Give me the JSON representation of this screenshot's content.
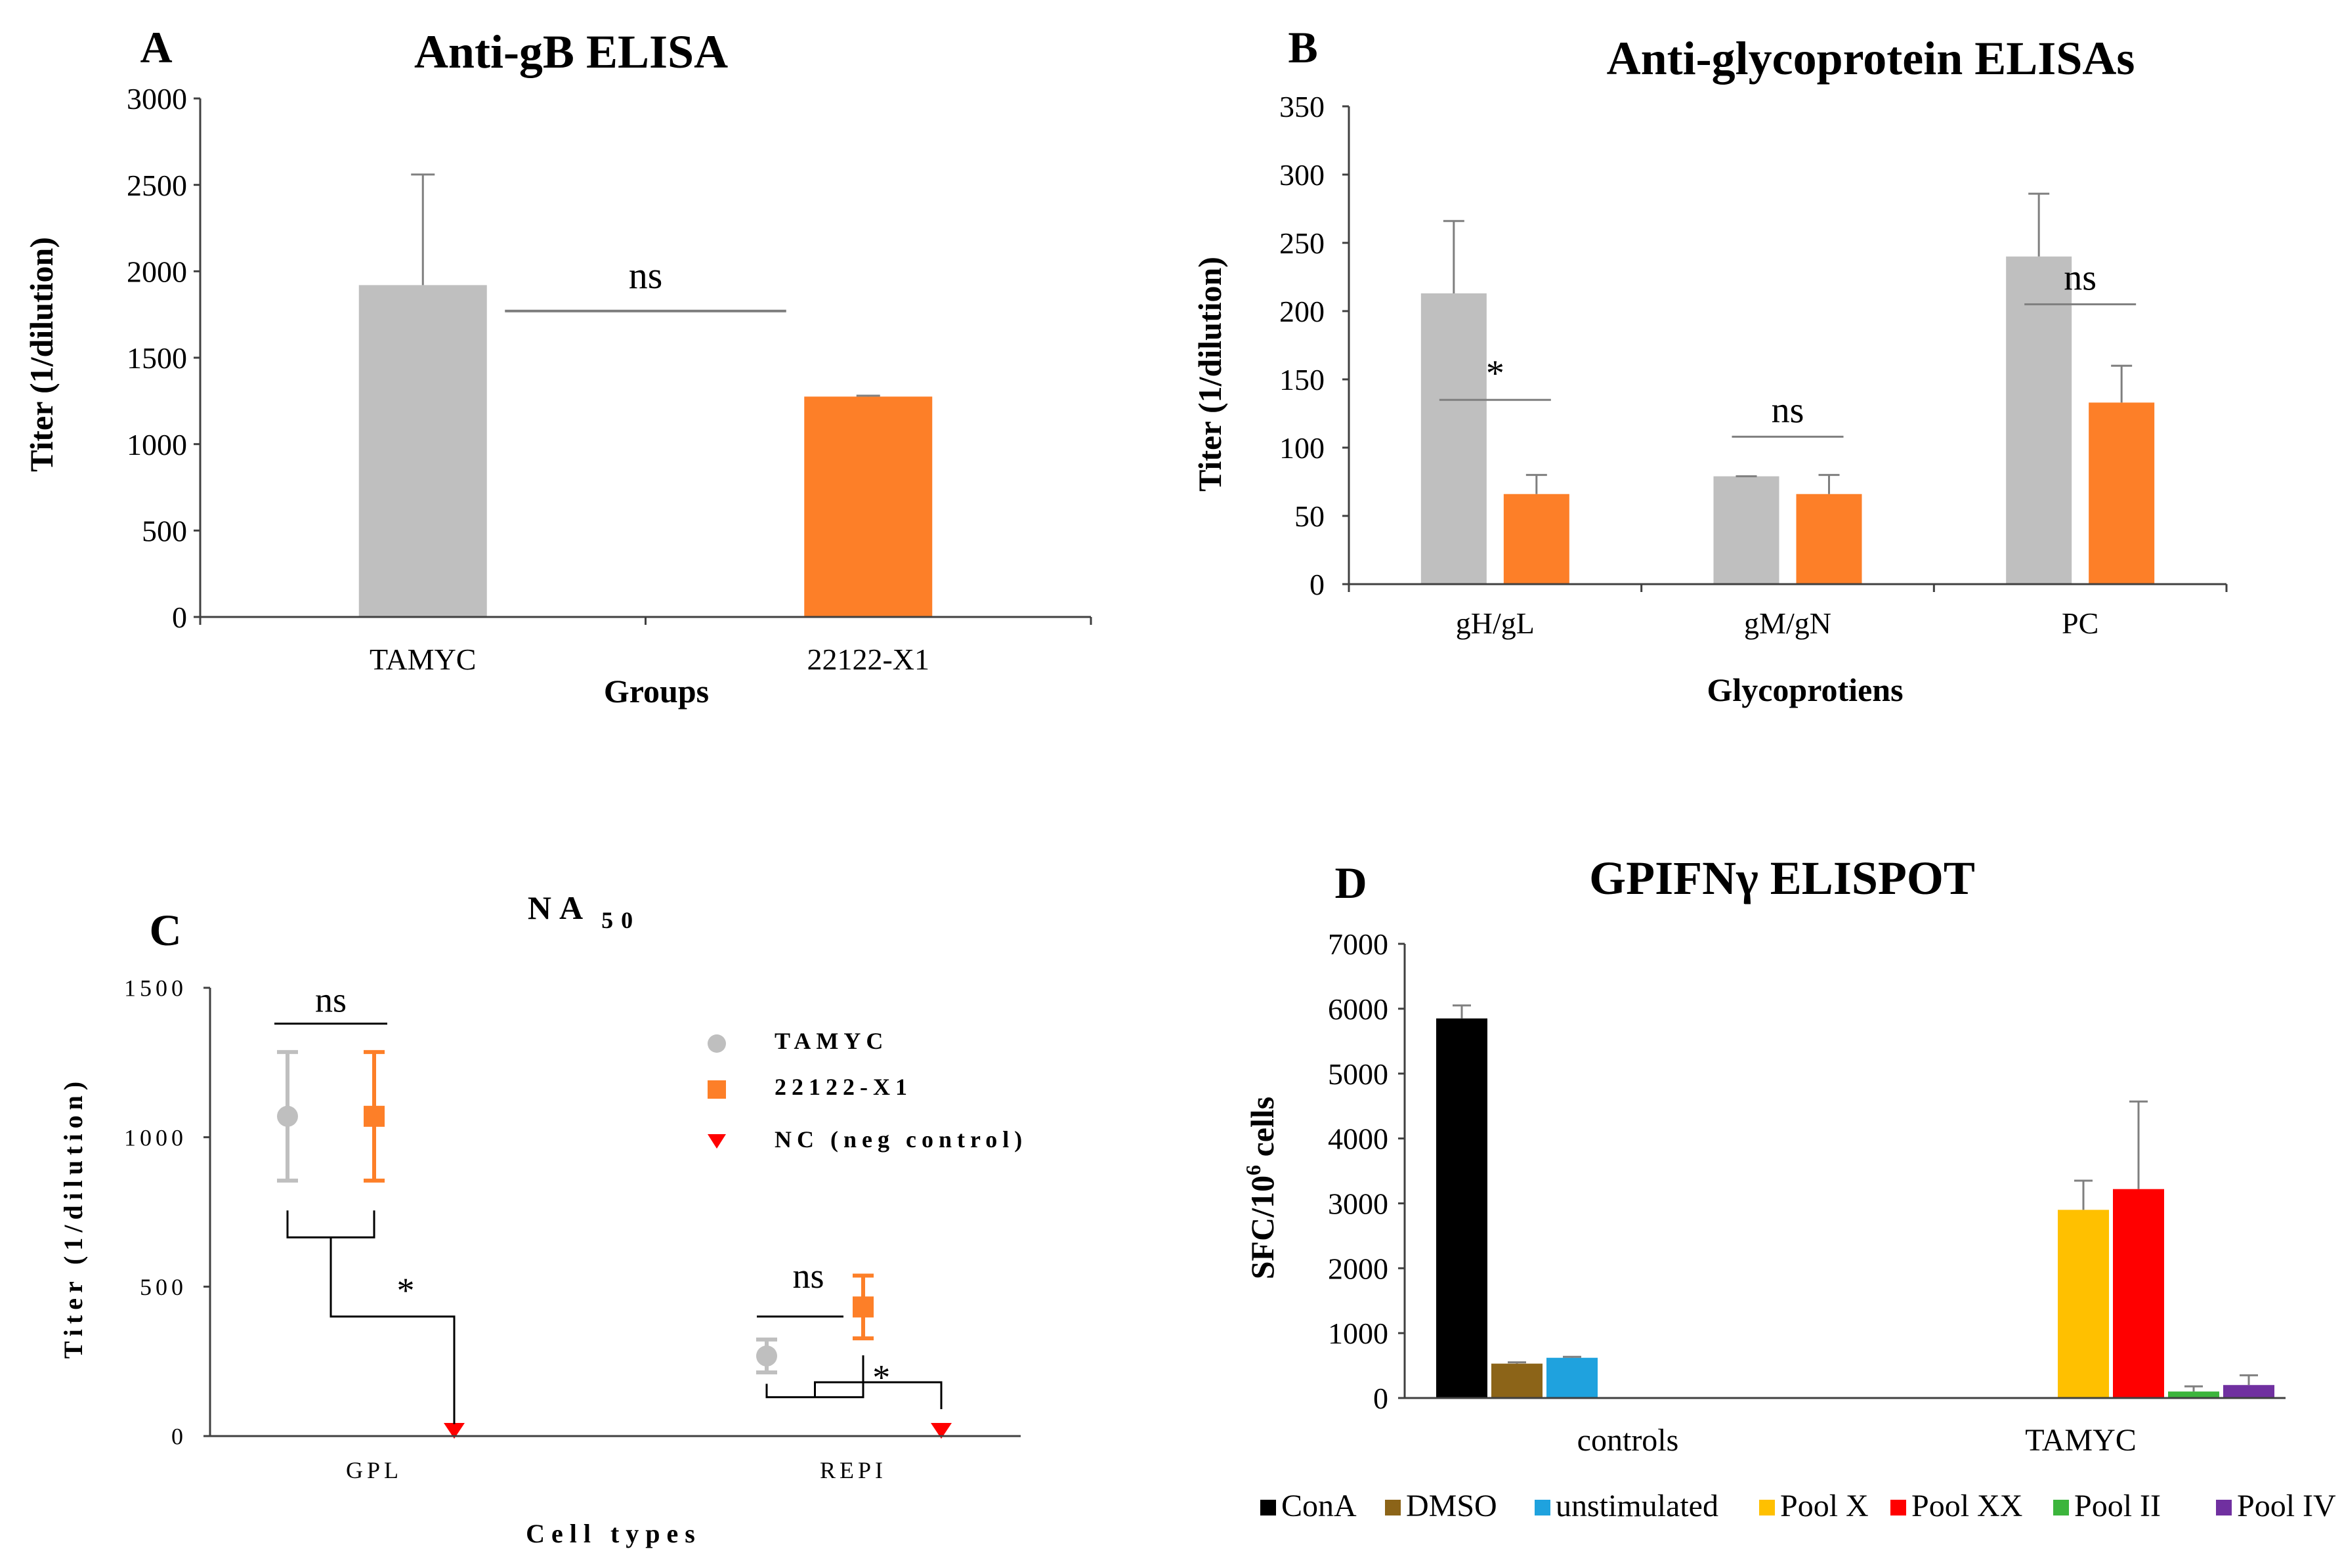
{
  "colors": {
    "gray": "#bfbfbf",
    "orange": "#fd7f28",
    "axis": "#404040",
    "err": "#7f7f7f",
    "red": "#ff0000",
    "black": "#000000",
    "brown": "#8c6418",
    "blue": "#1fa2de",
    "yellow": "#ffc000",
    "green": "#3cb53c",
    "purple": "#7030a0"
  },
  "chart_data": [
    {
      "panel": "A",
      "type": "bar",
      "title": "Anti-gB ELISA",
      "xlabel": "Groups",
      "ylabel": "Titer (1/dilution)",
      "ylim": [
        0,
        3000
      ],
      "yticks": [
        "0",
        "500",
        "1000",
        "1500",
        "2000",
        "2500",
        "3000"
      ],
      "categories": [
        "TAMYC",
        "22122-X1"
      ],
      "values": [
        1920,
        1275
      ],
      "errors": [
        640,
        5
      ],
      "annotations": [
        {
          "text": "ns",
          "between": [
            "TAMYC",
            "22122-X1"
          ],
          "y": 1770
        }
      ]
    },
    {
      "panel": "B",
      "type": "bar",
      "title": "Anti-glycoprotein ELISAs",
      "xlabel": "Glycoprotiens",
      "ylabel": "Titer (1/dilution)",
      "ylim": [
        0,
        350
      ],
      "yticks": [
        "0",
        "50",
        "100",
        "150",
        "200",
        "250",
        "300",
        "350"
      ],
      "categories": [
        "gH/gL",
        "gM/gN",
        "PC"
      ],
      "series": [
        {
          "name": "TAMYC",
          "values": [
            213,
            79,
            240
          ],
          "errors": [
            53,
            0,
            46
          ]
        },
        {
          "name": "22122-X1",
          "values": [
            66,
            66,
            133
          ],
          "errors": [
            14,
            14,
            27
          ]
        }
      ],
      "annotations": [
        {
          "text": "*",
          "category": "gH/gL",
          "y": 135
        },
        {
          "text": "ns",
          "category": "gM/gN",
          "y": 108
        },
        {
          "text": "ns",
          "category": "PC",
          "y": 205
        }
      ]
    },
    {
      "panel": "C",
      "type": "scatter",
      "title": "NA",
      "title_sub": "50",
      "xlabel": "Cell types",
      "ylabel": "Titer (1/dilution)",
      "ylim": [
        0,
        1500
      ],
      "yticks": [
        "0",
        "500",
        "1000",
        "1500"
      ],
      "categories": [
        "GPL",
        "REPI"
      ],
      "series": [
        {
          "name": "TAMYC",
          "marker": "circle",
          "values": [
            1070,
            268
          ],
          "errors": [
            215,
            55
          ]
        },
        {
          "name": "22122-X1",
          "marker": "square",
          "values": [
            1070,
            432
          ],
          "errors": [
            215,
            105
          ]
        },
        {
          "name": "NC (neg control)",
          "marker": "triangle",
          "values": [
            0,
            0
          ],
          "errors": [
            0,
            0
          ]
        }
      ],
      "annotations": [
        {
          "text": "ns",
          "category": "GPL",
          "y": 1380
        },
        {
          "text": "*",
          "category": "GPL",
          "y": 470
        },
        {
          "text": "ns",
          "category": "REPI",
          "y": 485
        },
        {
          "text": "*",
          "category": "REPI",
          "y": 205
        }
      ]
    },
    {
      "panel": "D",
      "type": "bar",
      "title": "GPIFNγ ELISPOT",
      "xlabel": "",
      "ylabel": "SFC/10",
      "ylabel_sup": "6",
      "ylabel_tail": " cells",
      "ylim": [
        0,
        7000
      ],
      "yticks": [
        "0",
        "1000",
        "2000",
        "3000",
        "4000",
        "5000",
        "6000",
        "7000"
      ],
      "categories": [
        "controls",
        "TAMYC"
      ],
      "series": [
        {
          "name": "ConA",
          "values": [
            5850,
            null
          ],
          "errors": [
            200,
            null
          ]
        },
        {
          "name": "DMSO",
          "values": [
            530,
            null
          ],
          "errors": [
            20,
            null
          ]
        },
        {
          "name": "unstimulated",
          "values": [
            620,
            null
          ],
          "errors": [
            15,
            null
          ]
        },
        {
          "name": "Pool X",
          "values": [
            null,
            2900
          ],
          "errors": [
            null,
            450
          ]
        },
        {
          "name": "Pool XX",
          "values": [
            null,
            3220
          ],
          "errors": [
            null,
            1350
          ]
        },
        {
          "name": "Pool II",
          "values": [
            null,
            100
          ],
          "errors": [
            null,
            80
          ]
        },
        {
          "name": "Pool IV",
          "values": [
            null,
            200
          ],
          "errors": [
            null,
            150
          ]
        }
      ]
    }
  ]
}
